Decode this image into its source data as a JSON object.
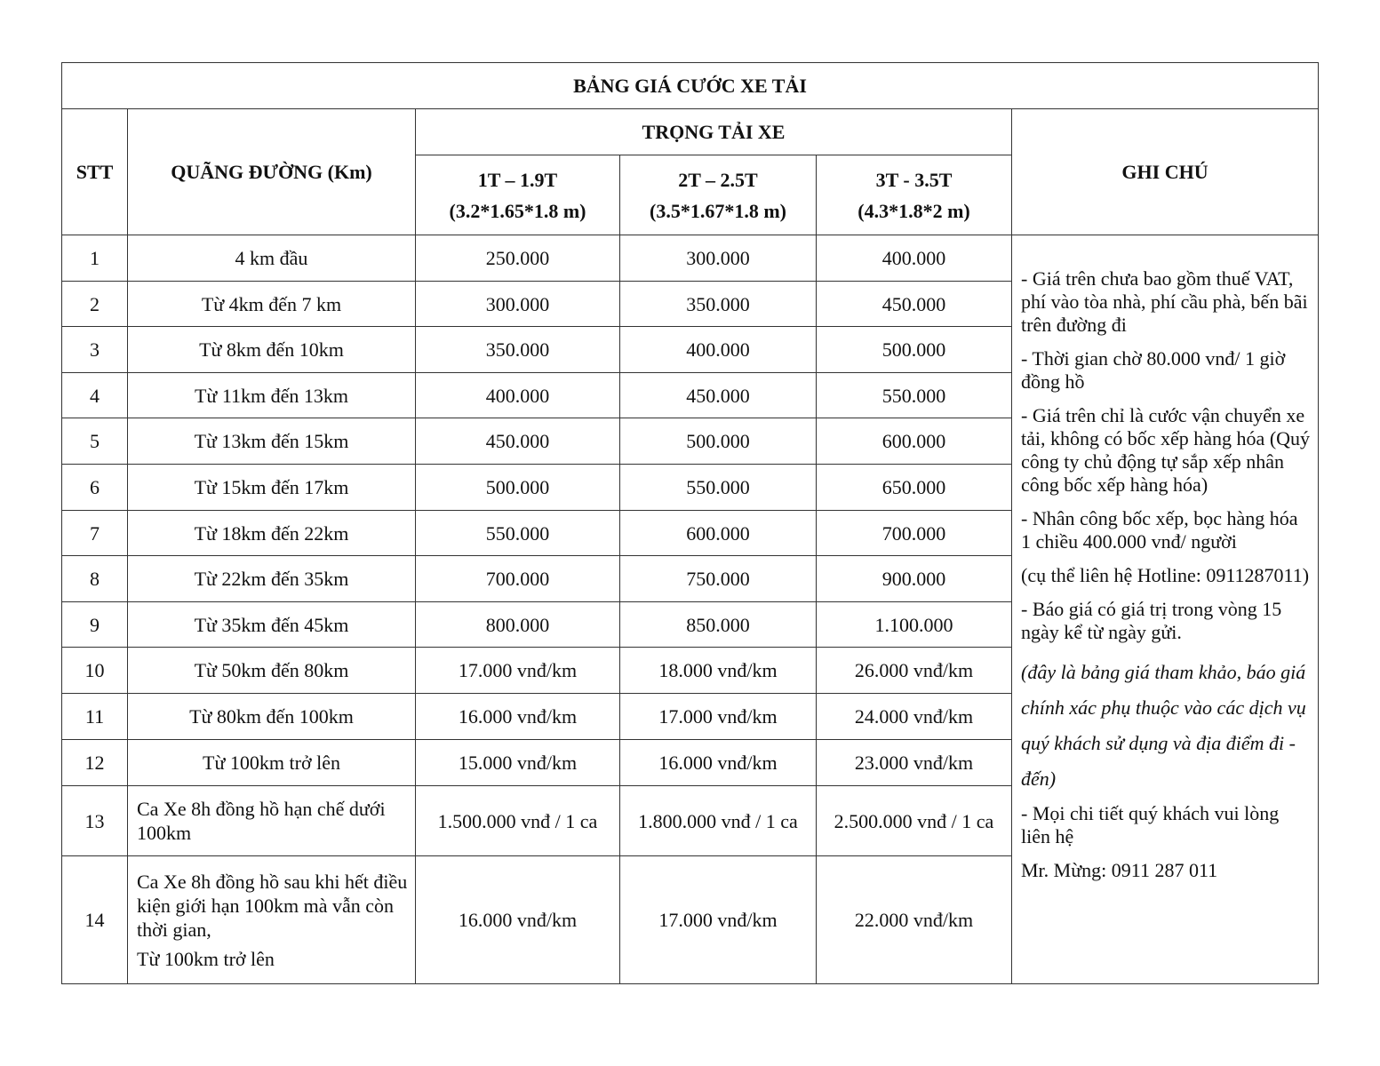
{
  "title": "BẢNG GIÁ CƯỚC XE TẢI",
  "headers": {
    "stt": "STT",
    "distance": "QUÃNG ĐƯỜNG (Km)",
    "capacity": "TRỌNG TẢI XE",
    "notes": "GHI CHÚ",
    "trucks": [
      {
        "load": "1T – 1.9T",
        "size": "(3.2*1.65*1.8 m)"
      },
      {
        "load": "2T – 2.5T",
        "size": "(3.5*1.67*1.8 m)"
      },
      {
        "load": "3T - 3.5T",
        "size": "(4.3*1.8*2 m)"
      }
    ]
  },
  "rows": [
    {
      "stt": "1",
      "distance": "4 km đầu",
      "prices": [
        "250.000",
        "300.000",
        "400.000"
      ]
    },
    {
      "stt": "2",
      "distance": "Từ 4km đến 7 km",
      "prices": [
        "300.000",
        "350.000",
        "450.000"
      ]
    },
    {
      "stt": "3",
      "distance": "Từ 8km đến 10km",
      "prices": [
        "350.000",
        "400.000",
        "500.000"
      ]
    },
    {
      "stt": "4",
      "distance": "Từ 11km đến 13km",
      "prices": [
        "400.000",
        "450.000",
        "550.000"
      ]
    },
    {
      "stt": "5",
      "distance": "Từ 13km đến 15km",
      "prices": [
        "450.000",
        "500.000",
        "600.000"
      ]
    },
    {
      "stt": "6",
      "distance": "Từ 15km đến 17km",
      "prices": [
        "500.000",
        "550.000",
        "650.000"
      ]
    },
    {
      "stt": "7",
      "distance": "Từ 18km đến 22km",
      "prices": [
        "550.000",
        "600.000",
        "700.000"
      ]
    },
    {
      "stt": "8",
      "distance": "Từ 22km đến 35km",
      "prices": [
        "700.000",
        "750.000",
        "900.000"
      ]
    },
    {
      "stt": "9",
      "distance": "Từ 35km đến 45km",
      "prices": [
        "800.000",
        "850.000",
        "1.100.000"
      ]
    },
    {
      "stt": "10",
      "distance": "Từ 50km đến 80km",
      "prices": [
        "17.000 vnđ/km",
        "18.000 vnđ/km",
        "26.000 vnđ/km"
      ]
    },
    {
      "stt": "11",
      "distance": "Từ 80km đến 100km",
      "prices": [
        "16.000 vnđ/km",
        "17.000 vnđ/km",
        "24.000 vnđ/km"
      ]
    },
    {
      "stt": "12",
      "distance": "Từ 100km trở lên",
      "prices": [
        "15.000 vnđ/km",
        "16.000 vnđ/km",
        "23.000 vnđ/km"
      ]
    },
    {
      "stt": "13",
      "distance": "Ca Xe 8h đồng hồ hạn chế dưới 100km",
      "prices": [
        "1.500.000 vnđ / 1 ca",
        "1.800.000 vnđ / 1 ca",
        "2.500.000 vnđ / 1 ca"
      ]
    },
    {
      "stt": "14",
      "distance": "Ca Xe 8h đồng hồ sau khi hết điều kiện giới hạn 100km mà vẫn còn thời gian,",
      "distance_extra": "Từ 100km trở lên",
      "prices": [
        "16.000 vnđ/km",
        "17.000 vnđ/km",
        "22.000 vnđ/km"
      ]
    }
  ],
  "notes": [
    {
      "text": "- Giá trên chưa bao gồm thuế VAT, phí vào tòa nhà, phí cầu phà, bến bãi trên đường đi",
      "italic": false
    },
    {
      "text": "- Thời gian chờ 80.000 vnđ/ 1 giờ đồng hồ",
      "italic": false
    },
    {
      "text": "- Giá trên chỉ là cước vận chuyển xe tải, không có bốc xếp hàng hóa (Quý công ty chủ động tự sắp xếp nhân công bốc xếp hàng hóa)",
      "italic": false
    },
    {
      "text": "- Nhân công bốc xếp, bọc hàng hóa 1 chiều 400.000 vnđ/ người",
      "italic": false
    },
    {
      "text": "(cụ thể liên hệ Hotline: 0911287011)",
      "italic": false
    },
    {
      "text": "- Báo giá có giá trị trong vòng 15 ngày kể từ ngày gửi.",
      "italic": false
    },
    {
      "text": "(đây là bảng giá tham khảo, báo giá chính xác phụ thuộc vào các dịch vụ quý khách sử dụng và địa điểm đi - đến)",
      "italic": true
    },
    {
      "text": "- Mọi chi tiết quý khách vui lòng liên hệ",
      "italic": false
    },
    {
      "text": "Mr. Mừng:  0911 287 011",
      "italic": false
    }
  ]
}
